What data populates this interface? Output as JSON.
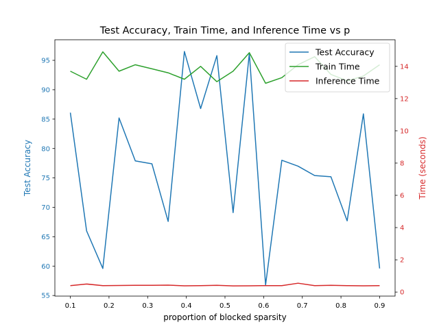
{
  "chart_data": {
    "type": "line",
    "title": "Test Accuracy, Train Time, and Inference Time vs p",
    "xlabel": "proportion of blocked sparsity",
    "ylabel_left": "Test Accuracy",
    "ylabel_right": "Time (seconds)",
    "x": [
      0.1,
      0.142,
      0.184,
      0.226,
      0.268,
      0.311,
      0.353,
      0.395,
      0.437,
      0.479,
      0.521,
      0.563,
      0.605,
      0.647,
      0.689,
      0.732,
      0.774,
      0.816,
      0.858,
      0.9
    ],
    "x_ticks": [
      "0.1",
      "0.2",
      "0.3",
      "0.4",
      "0.5",
      "0.6",
      "0.7",
      "0.8",
      "0.9"
    ],
    "x_tick_values": [
      0.1,
      0.2,
      0.3,
      0.4,
      0.5,
      0.6,
      0.7,
      0.8,
      0.9
    ],
    "xlim": [
      0.06,
      0.94
    ],
    "ylim_left": [
      54.9,
      98.5
    ],
    "ylim_right": [
      -0.25,
      15.65
    ],
    "y_left_ticks": [
      "55",
      "60",
      "65",
      "70",
      "75",
      "80",
      "85",
      "90",
      "95"
    ],
    "y_left_tick_values": [
      55,
      60,
      65,
      70,
      75,
      80,
      85,
      90,
      95
    ],
    "y_right_ticks": [
      "0",
      "2",
      "4",
      "6",
      "8",
      "10",
      "12",
      "14"
    ],
    "y_right_tick_values": [
      0,
      2,
      4,
      6,
      8,
      10,
      12,
      14
    ],
    "legend_position": "top-right",
    "left_axis_color": "#1f77b4",
    "right_axis_color": "#d62728",
    "series": [
      {
        "name": "Test Accuracy",
        "axis": "left",
        "color": "#1f77b4",
        "values": [
          86.1,
          66.0,
          59.6,
          85.2,
          77.9,
          77.4,
          67.6,
          96.5,
          86.8,
          95.8,
          69.1,
          96.2,
          56.8,
          78.0,
          77.0,
          75.4,
          75.2,
          67.7,
          85.9,
          59.6
        ]
      },
      {
        "name": "Train Time",
        "axis": "right",
        "color": "#2ca02c",
        "values": [
          13.7,
          13.2,
          14.9,
          13.7,
          14.1,
          13.85,
          13.6,
          13.2,
          14.0,
          13.05,
          13.7,
          14.85,
          12.95,
          13.3,
          14.1,
          14.6,
          13.5,
          13.1,
          13.4,
          14.1
        ]
      },
      {
        "name": "Inference Time",
        "axis": "right",
        "color": "#d62728",
        "values": [
          0.4,
          0.5,
          0.4,
          0.41,
          0.42,
          0.42,
          0.43,
          0.39,
          0.4,
          0.42,
          0.38,
          0.39,
          0.4,
          0.4,
          0.55,
          0.4,
          0.42,
          0.4,
          0.39,
          0.4
        ]
      }
    ]
  }
}
